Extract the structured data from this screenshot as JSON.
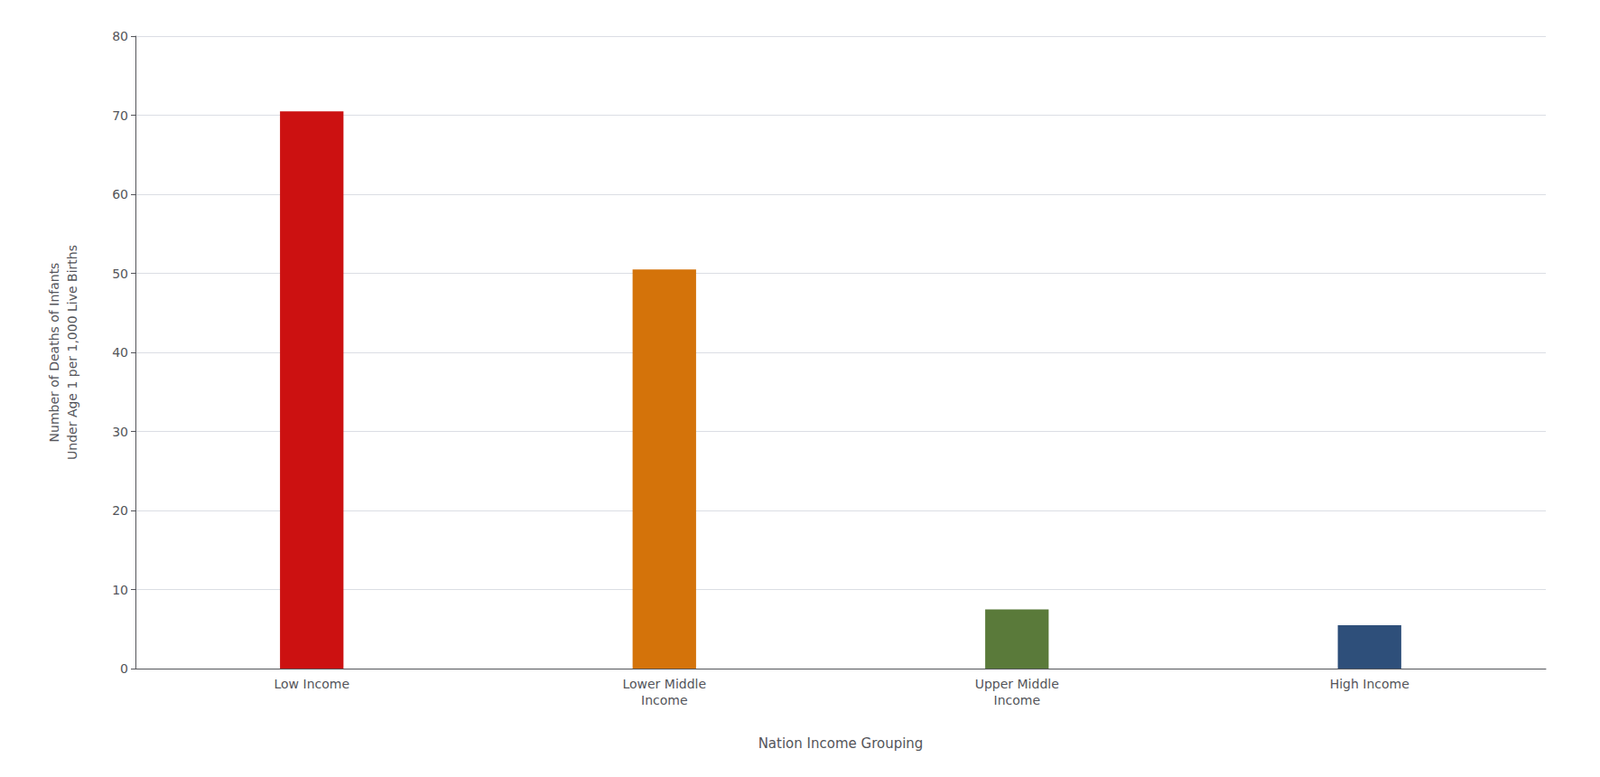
{
  "chart_data": {
    "type": "bar",
    "categories": [
      "Low Income",
      "Lower Middle\nIncome",
      "Upper Middle\nIncome",
      "High Income"
    ],
    "values": [
      70.5,
      50.5,
      7.5,
      5.5
    ],
    "colors": [
      "#cc1111",
      "#d4730a",
      "#5a7a3a",
      "#2e4f7a"
    ],
    "xlabel": "Nation Income Grouping",
    "ylabel": "Number of Deaths of Infants\nUnder Age 1 per 1,000 Live Births",
    "ylim": [
      0,
      80
    ],
    "yticks": [
      0,
      10,
      20,
      30,
      40,
      50,
      60,
      70,
      80
    ],
    "grid": true
  }
}
